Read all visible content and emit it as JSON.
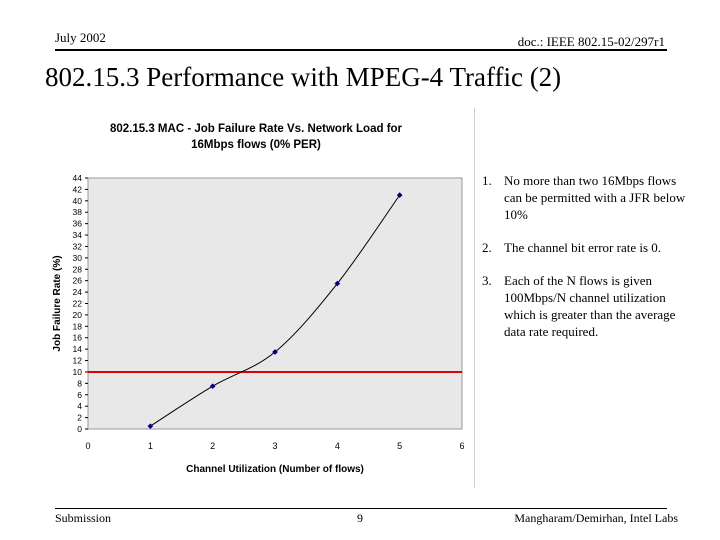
{
  "header": {
    "date": "July 2002",
    "doc_id": "doc.: IEEE 802.15-02/297r1"
  },
  "slide_title": "802.15.3 Performance with MPEG-4 Traffic (2)",
  "chart_data": {
    "type": "line",
    "title_line1": "802.15.3 MAC - Job Failure Rate Vs. Network Load for",
    "title_line2": "16Mbps flows (0% PER)",
    "xlabel": "Channel Utilization (Number of flows)",
    "ylabel": "Job Failure Rate (%)",
    "xlim": [
      0,
      6
    ],
    "ylim": [
      0,
      44
    ],
    "xticks": [
      0,
      1,
      2,
      3,
      4,
      5,
      6
    ],
    "yticks": [
      0,
      2,
      4,
      6,
      8,
      10,
      12,
      14,
      16,
      18,
      20,
      22,
      24,
      26,
      28,
      30,
      32,
      34,
      36,
      38,
      40,
      42,
      44
    ],
    "series": [
      {
        "x": [
          1,
          2,
          3,
          4,
          5
        ],
        "values": [
          0.5,
          7.5,
          13.5,
          25.5,
          41
        ],
        "color": "#000080"
      }
    ],
    "threshold": {
      "y": 10,
      "color": "#e00000"
    },
    "plot_background": "#e8e8e8",
    "grid": false
  },
  "notes": [
    {
      "num": "1.",
      "text": "No more than two 16Mbps flows can be permitted with a JFR below 10%"
    },
    {
      "num": "2.",
      "text": "The channel bit error rate is 0."
    },
    {
      "num": "3.",
      "text": "Each of the N flows is given 100Mbps/N channel utilization which is greater than the average data rate required."
    }
  ],
  "footer": {
    "left": "Submission",
    "page": "9",
    "right": "Mangharam/Demirhan, Intel Labs"
  }
}
